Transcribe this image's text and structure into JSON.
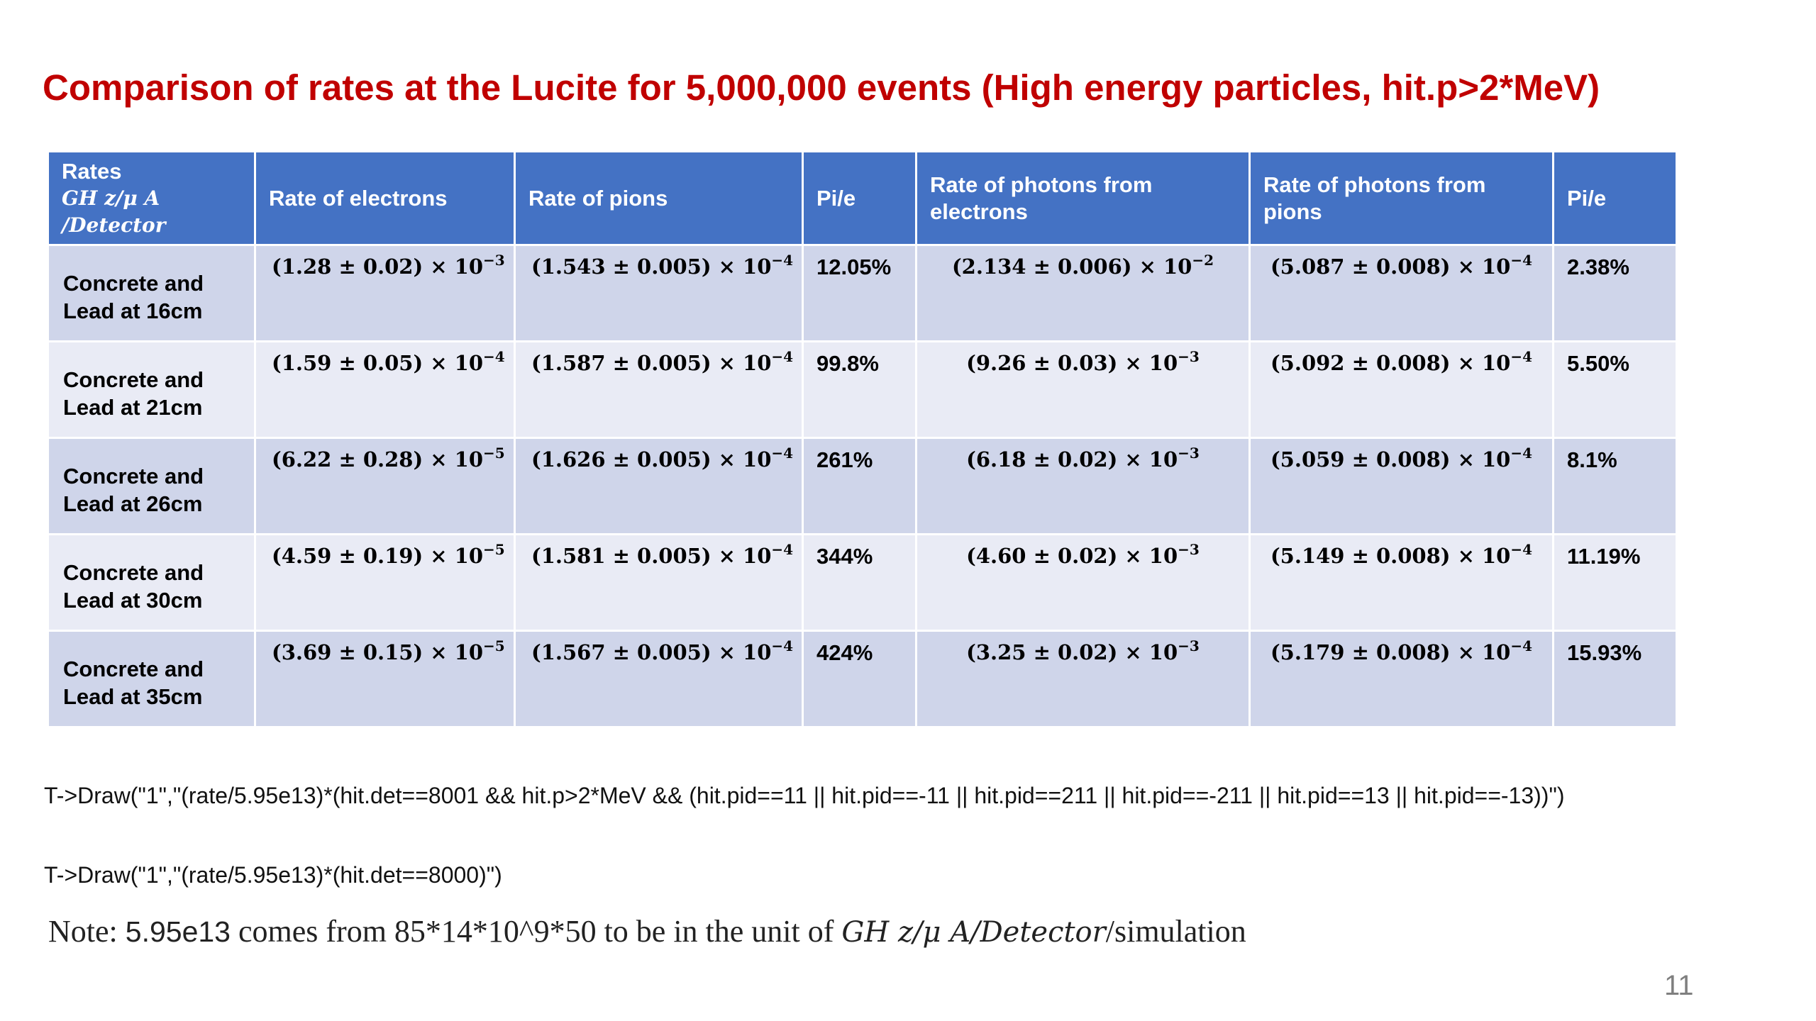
{
  "title": "Comparison of rates at the Lucite for 5,000,000 events (High energy particles, hit.p>2*MeV)",
  "table": {
    "headers": {
      "rates": "Rates",
      "units": "GH z/μ A /Detector",
      "electrons": "Rate of electrons",
      "pions": "Rate of pions",
      "ratio1": "Pi/e",
      "photons_electrons": "Rate of photons from electrons",
      "photons_pions": "Rate of photons from pions",
      "ratio2": "Pi/e"
    },
    "rows": [
      {
        "label": "Concrete and Lead at 16cm",
        "electrons": "(1.28 ± 0.02) × 10",
        "electrons_exp": "−3",
        "pions": "(1.543 ± 0.005) × 10",
        "pions_exp": "−4",
        "ratio1": "12.05%",
        "photons_electrons": "(2.134 ± 0.006) × 10",
        "photons_electrons_exp": "−2",
        "photons_pions": "(5.087 ± 0.008) × 10",
        "photons_pions_exp": "−4",
        "ratio2": "2.38%"
      },
      {
        "label": "Concrete and Lead at 21cm",
        "electrons": "(1.59 ± 0.05) × 10",
        "electrons_exp": "−4",
        "pions": "(1.587 ± 0.005) × 10",
        "pions_exp": "−4",
        "ratio1": "99.8%",
        "photons_electrons": "(9.26 ± 0.03) × 10",
        "photons_electrons_exp": "−3",
        "photons_pions": "(5.092 ± 0.008) × 10",
        "photons_pions_exp": "−4",
        "ratio2": "5.50%"
      },
      {
        "label": "Concrete and Lead at 26cm",
        "electrons": "(6.22 ± 0.28) × 10",
        "electrons_exp": "−5",
        "pions": "(1.626 ± 0.005) × 10",
        "pions_exp": "−4",
        "ratio1": "261%",
        "photons_electrons": "(6.18 ± 0.02) × 10",
        "photons_electrons_exp": "−3",
        "photons_pions": "(5.059 ± 0.008) × 10",
        "photons_pions_exp": "−4",
        "ratio2": "8.1%"
      },
      {
        "label": "Concrete and Lead at 30cm",
        "electrons": "(4.59 ± 0.19) × 10",
        "electrons_exp": "−5",
        "pions": "(1.581 ± 0.005) × 10",
        "pions_exp": "−4",
        "ratio1": "344%",
        "photons_electrons": "(4.60 ± 0.02) × 10",
        "photons_electrons_exp": "−3",
        "photons_pions": "(5.149 ± 0.008) × 10",
        "photons_pions_exp": "−4",
        "ratio2": "11.19%"
      },
      {
        "label": "Concrete and Lead at 35cm",
        "electrons": "(3.69 ± 0.15) × 10",
        "electrons_exp": "−5",
        "pions": "(1.567 ± 0.005) × 10",
        "pions_exp": "−4",
        "ratio1": "424%",
        "photons_electrons": "(3.25 ± 0.02) × 10",
        "photons_electrons_exp": "−3",
        "photons_pions": "(5.179 ± 0.008) × 10",
        "photons_pions_exp": "−4",
        "ratio2": "15.93%"
      }
    ]
  },
  "code": {
    "line1": "T->Draw(\"1\",\"(rate/5.95e13)*(hit.det==8001 && hit.p>2*MeV && (hit.pid==11 || hit.pid==-11 || hit.pid==211 || hit.pid==-211 || hit.pid==13 || hit.pid==-13))\")",
    "line2": "T->Draw(\"1\",\"(rate/5.95e13)*(hit.det==8000)\")"
  },
  "note": {
    "prefix": "Note: ",
    "value": "5.95e13",
    "middle": " comes from 85*14*10^9*50 to be in the unit of ",
    "unit": "GH z/μ A/Detector",
    "suffix": "/simulation"
  },
  "page_number": "11",
  "colors": {
    "title": "#c00000",
    "header_bg": "#4472c4",
    "row_dark": "#cfd5ea",
    "row_light": "#e9ebf5"
  }
}
